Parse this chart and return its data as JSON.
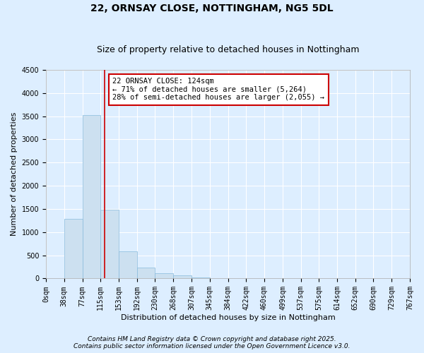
{
  "title": "22, ORNSAY CLOSE, NOTTINGHAM, NG5 5DL",
  "subtitle": "Size of property relative to detached houses in Nottingham",
  "xlabel": "Distribution of detached houses by size in Nottingham",
  "ylabel": "Number of detached properties",
  "bar_color": "#cce0f0",
  "bar_edge_color": "#88bbdd",
  "background_color": "#ddeeff",
  "grid_color": "#ffffff",
  "vline_x": 124,
  "vline_color": "#cc0000",
  "bin_edges": [
    0,
    38,
    77,
    115,
    153,
    192,
    230,
    268,
    307,
    345,
    384,
    422,
    460,
    499,
    537,
    575,
    614,
    652,
    690,
    729,
    767
  ],
  "bin_labels": [
    "0sqm",
    "38sqm",
    "77sqm",
    "115sqm",
    "153sqm",
    "192sqm",
    "230sqm",
    "268sqm",
    "307sqm",
    "345sqm",
    "384sqm",
    "422sqm",
    "460sqm",
    "499sqm",
    "537sqm",
    "575sqm",
    "614sqm",
    "652sqm",
    "690sqm",
    "729sqm",
    "767sqm"
  ],
  "counts": [
    0,
    1280,
    3530,
    1490,
    590,
    240,
    120,
    65,
    25,
    5,
    2,
    0,
    0,
    0,
    0,
    0,
    0,
    0,
    0,
    0
  ],
  "ylim": [
    0,
    4500
  ],
  "yticks": [
    0,
    500,
    1000,
    1500,
    2000,
    2500,
    3000,
    3500,
    4000,
    4500
  ],
  "annotation_title": "22 ORNSAY CLOSE: 124sqm",
  "annotation_line1": "← 71% of detached houses are smaller (5,264)",
  "annotation_line2": "28% of semi-detached houses are larger (2,055) →",
  "annotation_box_color": "#ffffff",
  "annotation_box_edge": "#cc0000",
  "footnote1": "Contains HM Land Registry data © Crown copyright and database right 2025.",
  "footnote2": "Contains public sector information licensed under the Open Government Licence v3.0.",
  "title_fontsize": 10,
  "subtitle_fontsize": 9,
  "axis_label_fontsize": 8,
  "tick_fontsize": 7,
  "annotation_fontsize": 7.5,
  "footnote_fontsize": 6.5
}
